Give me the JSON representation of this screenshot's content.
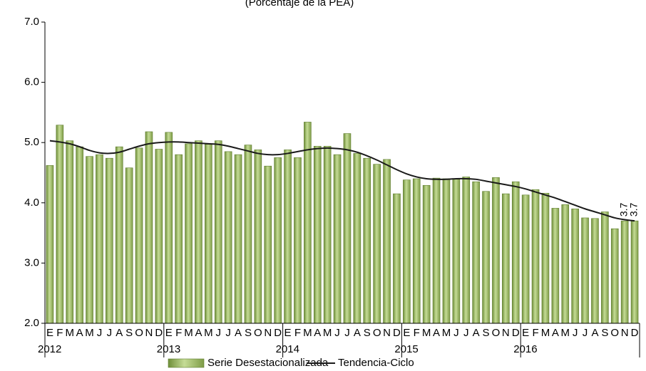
{
  "chart_data": {
    "type": "bar",
    "title": "(Porcentaje de la PEA)",
    "categories": [
      "E",
      "F",
      "M",
      "A",
      "M",
      "J",
      "J",
      "A",
      "S",
      "O",
      "N",
      "D",
      "E",
      "F",
      "M",
      "A",
      "M",
      "J",
      "J",
      "A",
      "S",
      "O",
      "N",
      "D",
      "E",
      "F",
      "M",
      "A",
      "M",
      "J",
      "J",
      "A",
      "S",
      "O",
      "N",
      "D",
      "E",
      "F",
      "M",
      "A",
      "M",
      "J",
      "J",
      "A",
      "S",
      "O",
      "N",
      "D",
      "E",
      "F",
      "M",
      "A",
      "M",
      "J",
      "J",
      "A",
      "S",
      "O",
      "N",
      "D"
    ],
    "years": [
      "2012",
      null,
      null,
      null,
      null,
      null,
      null,
      null,
      null,
      null,
      null,
      null,
      "2013",
      null,
      null,
      null,
      null,
      null,
      null,
      null,
      null,
      null,
      null,
      null,
      "2014",
      null,
      null,
      null,
      null,
      null,
      null,
      null,
      null,
      null,
      null,
      null,
      "2015",
      null,
      null,
      null,
      null,
      null,
      null,
      null,
      null,
      null,
      null,
      null,
      "2016",
      null,
      null,
      null,
      null,
      null,
      null,
      null,
      null,
      null,
      null,
      null
    ],
    "series": [
      {
        "name": "Serie Desestacionalizada",
        "type": "bar",
        "color": "#9bb865",
        "values": [
          4.62,
          5.29,
          5.03,
          4.93,
          4.77,
          4.8,
          4.74,
          4.93,
          4.58,
          4.91,
          5.18,
          4.89,
          5.17,
          4.8,
          4.98,
          5.03,
          4.97,
          5.03,
          4.85,
          4.8,
          4.96,
          4.88,
          4.61,
          4.75,
          4.88,
          4.75,
          5.34,
          4.94,
          4.94,
          4.8,
          5.15,
          4.82,
          4.74,
          4.64,
          4.72,
          4.15,
          4.38,
          4.4,
          4.29,
          4.41,
          4.4,
          4.39,
          4.43,
          4.35,
          4.19,
          4.42,
          4.15,
          4.35,
          4.13,
          4.22,
          4.16,
          3.91,
          3.97,
          3.9,
          3.75,
          3.74,
          3.85,
          3.57,
          3.7,
          3.7
        ],
        "value_labels": [
          null,
          null,
          null,
          null,
          null,
          null,
          null,
          null,
          null,
          null,
          null,
          null,
          null,
          null,
          null,
          null,
          null,
          null,
          null,
          null,
          null,
          null,
          null,
          null,
          null,
          null,
          null,
          null,
          null,
          null,
          null,
          null,
          null,
          null,
          null,
          null,
          null,
          null,
          null,
          null,
          null,
          null,
          null,
          null,
          null,
          null,
          null,
          null,
          null,
          null,
          null,
          null,
          null,
          null,
          null,
          null,
          null,
          null,
          null,
          "3.7"
        ]
      },
      {
        "name": "Tendencia-Ciclo",
        "type": "line",
        "color": "#1a1a1a",
        "values": [
          5.03,
          5.01,
          4.98,
          4.93,
          4.87,
          4.83,
          4.82,
          4.84,
          4.89,
          4.94,
          4.98,
          5.0,
          5.01,
          5.01,
          5.0,
          4.99,
          4.98,
          4.97,
          4.94,
          4.9,
          4.86,
          4.82,
          4.8,
          4.8,
          4.82,
          4.85,
          4.88,
          4.9,
          4.91,
          4.9,
          4.88,
          4.84,
          4.78,
          4.71,
          4.63,
          4.55,
          4.48,
          4.43,
          4.4,
          4.39,
          4.39,
          4.4,
          4.4,
          4.39,
          4.36,
          4.33,
          4.3,
          4.27,
          4.23,
          4.18,
          4.13,
          4.08,
          4.02,
          3.96,
          3.9,
          3.85,
          3.8,
          3.75,
          3.72,
          3.7
        ],
        "value_labels": [
          null,
          null,
          null,
          null,
          null,
          null,
          null,
          null,
          null,
          null,
          null,
          null,
          null,
          null,
          null,
          null,
          null,
          null,
          null,
          null,
          null,
          null,
          null,
          null,
          null,
          null,
          null,
          null,
          null,
          null,
          null,
          null,
          null,
          null,
          null,
          null,
          null,
          null,
          null,
          null,
          null,
          null,
          null,
          null,
          null,
          null,
          null,
          null,
          null,
          null,
          null,
          null,
          null,
          null,
          null,
          null,
          null,
          null,
          null,
          "3.7"
        ]
      }
    ],
    "ylim": [
      2,
      7
    ],
    "yticks": [
      {
        "value": 2,
        "label": "2.0"
      },
      {
        "value": 3,
        "label": "3.0"
      },
      {
        "value": 4,
        "label": "4.0"
      },
      {
        "value": 5,
        "label": "5.0"
      },
      {
        "value": 6,
        "label": "6.0"
      },
      {
        "value": 7,
        "label": "7.0"
      }
    ],
    "grid": false,
    "legend": "bottom"
  }
}
